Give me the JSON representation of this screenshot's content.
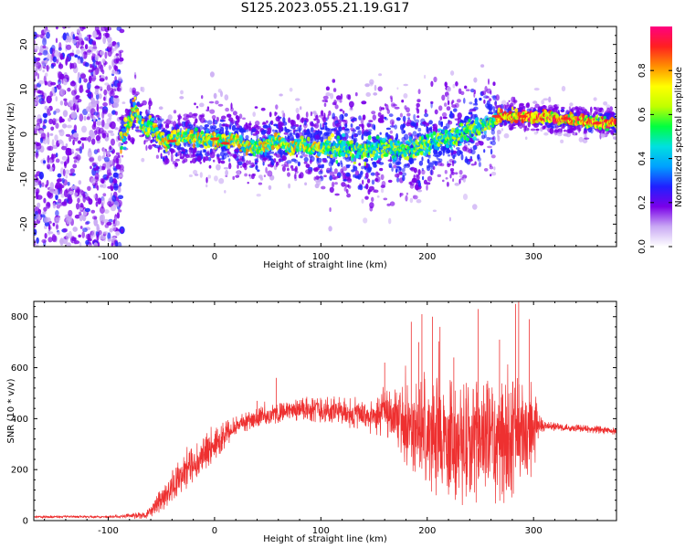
{
  "figure": {
    "title": "S125.2023.055.21.19.G17"
  },
  "chart_data": [
    {
      "type": "heatmap",
      "xlabel": "Height of straight line (km)",
      "ylabel": "Frequency (Hz)",
      "xlim": [
        -170,
        378
      ],
      "ylim": [
        -25,
        24
      ],
      "x_ticks": [
        -100,
        0,
        100,
        200,
        300
      ],
      "y_ticks": [
        -20,
        -10,
        0,
        10,
        20
      ],
      "colorbar": {
        "label": "Normalized spectral amplitude",
        "range": [
          0,
          1
        ],
        "ticks": [
          0.0,
          0.2,
          0.4,
          0.6,
          0.8
        ],
        "colormap": [
          "#ffffff",
          "#c9a9f4",
          "#7a00e8",
          "#2020ff",
          "#00a0ff",
          "#00e0e0",
          "#00ff40",
          "#c0ff00",
          "#ffff00",
          "#ff9000",
          "#ff2020",
          "#ff0080"
        ]
      },
      "ridge": {
        "x": [
          -90,
          -80,
          -75,
          -70,
          -65,
          -60,
          -55,
          -50,
          -45,
          -40,
          -30,
          -20,
          -10,
          0,
          10,
          20,
          30,
          40,
          50,
          60,
          70,
          80,
          90,
          100,
          110,
          120,
          140,
          160,
          180,
          200,
          220,
          240,
          255,
          265,
          280,
          300,
          320,
          340,
          360,
          378
        ],
        "y": [
          -3,
          3,
          6,
          3,
          1,
          2,
          1,
          -1,
          -2,
          -1,
          -0.5,
          -0.5,
          -1,
          -1,
          -1.5,
          -1,
          -3,
          -3,
          -2.5,
          -1,
          -3,
          -2,
          -3,
          -3,
          -3,
          -3,
          -4,
          -3,
          -4,
          -2,
          -1,
          1,
          2,
          4,
          4,
          4,
          3.5,
          3,
          2.5,
          2.5
        ],
        "width_hz": [
          4,
          4,
          3,
          2,
          2,
          2,
          2,
          2,
          2,
          2,
          2,
          2,
          2,
          2,
          2,
          2,
          2,
          2,
          2,
          2,
          2,
          2,
          2,
          2,
          3,
          3,
          3,
          3,
          3,
          3,
          3,
          3,
          2,
          1.5,
          1.5,
          1.5,
          1.5,
          1.5,
          1.5,
          1.5
        ]
      },
      "noise_region_x": [
        -170,
        -87
      ]
    },
    {
      "type": "line",
      "xlabel": "Height of straight line (km)",
      "ylabel": "SNR (10 * v/v)",
      "xlim": [
        -170,
        378
      ],
      "ylim": [
        0,
        860
      ],
      "x_ticks": [
        -100,
        0,
        100,
        200,
        300
      ],
      "y_ticks": [
        0,
        200,
        400,
        600,
        800
      ],
      "series": [
        {
          "color": "#ee3030",
          "envelope_x": [
            -170,
            -100,
            -65,
            -55,
            -45,
            -35,
            -25,
            -15,
            -5,
            5,
            15,
            25,
            35,
            50,
            70,
            90,
            110,
            130,
            150,
            160,
            170,
            180,
            190,
            200,
            220,
            240,
            260,
            280,
            290,
            300,
            305,
            310,
            330,
            350,
            378
          ],
          "envelope_mean": [
            15,
            15,
            20,
            60,
            110,
            160,
            200,
            240,
            270,
            320,
            360,
            380,
            400,
            410,
            430,
            440,
            430,
            420,
            400,
            420,
            400,
            380,
            350,
            330,
            320,
            300,
            300,
            320,
            340,
            360,
            380,
            370,
            365,
            360,
            350
          ],
          "envelope_spread": [
            4,
            5,
            15,
            40,
            60,
            70,
            70,
            70,
            70,
            60,
            50,
            40,
            40,
            40,
            40,
            50,
            60,
            60,
            70,
            90,
            120,
            160,
            200,
            230,
            240,
            250,
            250,
            240,
            230,
            200,
            40,
            20,
            15,
            15,
            15
          ],
          "peaks_x": [
            40,
            58,
            160,
            185,
            192,
            195,
            205,
            212,
            225,
            248,
            268,
            283,
            286,
            296
          ],
          "peaks_y": [
            470,
            560,
            620,
            780,
            700,
            810,
            800,
            760,
            640,
            830,
            710,
            850,
            860,
            790
          ]
        }
      ]
    }
  ]
}
